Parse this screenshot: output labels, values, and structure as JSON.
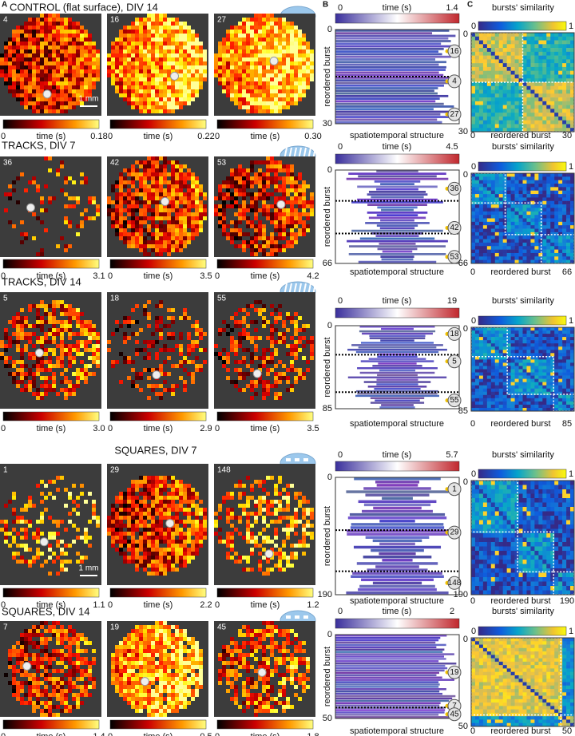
{
  "panel_labels": [
    "A",
    "B",
    "C"
  ],
  "rows": [
    {
      "title": "CONTROL (flat surface),  DIV 14",
      "scale_bar": "1 mm",
      "cb_label": "time (s)",
      "maps": [
        {
          "id": "4",
          "cb_min": "0",
          "cb_max": "0.18"
        },
        {
          "id": "16",
          "cb_min": "0",
          "cb_max": "0.22"
        },
        {
          "id": "27",
          "cb_min": "0",
          "cb_max": "0.30"
        }
      ],
      "structure": {
        "cb_label": "time (s)",
        "cb_min": "0",
        "cb_max": "1.4",
        "y_label": "reordered burst",
        "y_min": "0",
        "y_max": "30",
        "x_label": "spatiotemporal structure",
        "markers": [
          "16",
          "4",
          "27"
        ]
      },
      "similarity": {
        "cb_label": "bursts' similarity",
        "cb_min": "0",
        "cb_max": "1",
        "x_label": "reordered burst",
        "min": "0",
        "max": "30"
      }
    },
    {
      "title": "TRACKS,  DIV 7",
      "cb_label": "time (s)",
      "maps": [
        {
          "id": "36",
          "cb_min": "0",
          "cb_max": "3.1"
        },
        {
          "id": "42",
          "cb_min": "0",
          "cb_max": "3.5"
        },
        {
          "id": "53",
          "cb_min": "0",
          "cb_max": "4.2"
        }
      ],
      "structure": {
        "cb_label": "time (s)",
        "cb_min": "0",
        "cb_max": "4.5",
        "y_label": "reordered burst",
        "y_min": "0",
        "y_max": "66",
        "x_label": "spatiotemporal structure",
        "markers": [
          "36",
          "42",
          "53"
        ]
      },
      "similarity": {
        "cb_label": "bursts' similarity",
        "cb_min": "0",
        "cb_max": "1",
        "x_label": "reordered burst",
        "min": "0",
        "max": "66"
      }
    },
    {
      "title": "TRACKS,  DIV 14",
      "cb_label": "time (s)",
      "maps": [
        {
          "id": "5",
          "cb_min": "0",
          "cb_max": "3.0"
        },
        {
          "id": "18",
          "cb_min": "0",
          "cb_max": "2.9"
        },
        {
          "id": "55",
          "cb_min": "0",
          "cb_max": "3.5"
        }
      ],
      "structure": {
        "cb_label": "time (s)",
        "cb_min": "0",
        "cb_max": "19",
        "y_label": "reordered burst",
        "y_min": "0",
        "y_max": "85",
        "x_label": "spatiotemporal structure",
        "markers": [
          "18",
          "5",
          "55"
        ]
      },
      "similarity": {
        "cb_label": "bursts' similarity",
        "cb_min": "0",
        "cb_max": "1",
        "x_label": "reordered burst",
        "min": "0",
        "max": "85"
      }
    },
    {
      "title": "SQUARES,  DIV 7",
      "scale_bar": "1 mm",
      "cb_label": "time (s)",
      "maps": [
        {
          "id": "1",
          "cb_min": "0",
          "cb_max": "1.1"
        },
        {
          "id": "29",
          "cb_min": "0",
          "cb_max": "2.2"
        },
        {
          "id": "148",
          "cb_min": "0",
          "cb_max": "1.2"
        }
      ],
      "structure": {
        "cb_label": "time (s)",
        "cb_min": "0",
        "cb_max": "5.7",
        "y_label": "reordered burst",
        "y_min": "0",
        "y_max": "190",
        "x_label": "spatiotemporal structure",
        "markers": [
          "1",
          "29",
          "148"
        ]
      },
      "similarity": {
        "cb_label": "bursts' similarity",
        "cb_min": "0",
        "cb_max": "1",
        "x_label": "reordered burst",
        "min": "0",
        "max": "190"
      }
    },
    {
      "title": "SQUARES,  DIV 14",
      "cb_label": "time (s)",
      "maps": [
        {
          "id": "7",
          "cb_min": "0",
          "cb_max": "1.4"
        },
        {
          "id": "19",
          "cb_min": "0",
          "cb_max": "0.5"
        },
        {
          "id": "45",
          "cb_min": "0",
          "cb_max": "1.8"
        }
      ],
      "structure": {
        "cb_label": "time (s)",
        "cb_min": "0",
        "cb_max": "2",
        "y_label": "reordered burst",
        "y_min": "0",
        "y_max": "50",
        "x_label": "spatiotemporal structure",
        "markers": [
          "19",
          "7",
          "45"
        ]
      },
      "similarity": {
        "cb_label": "bursts' similarity",
        "cb_min": "0",
        "cb_max": "1",
        "x_label": "reordered burst",
        "min": "0",
        "max": "50"
      }
    }
  ]
}
